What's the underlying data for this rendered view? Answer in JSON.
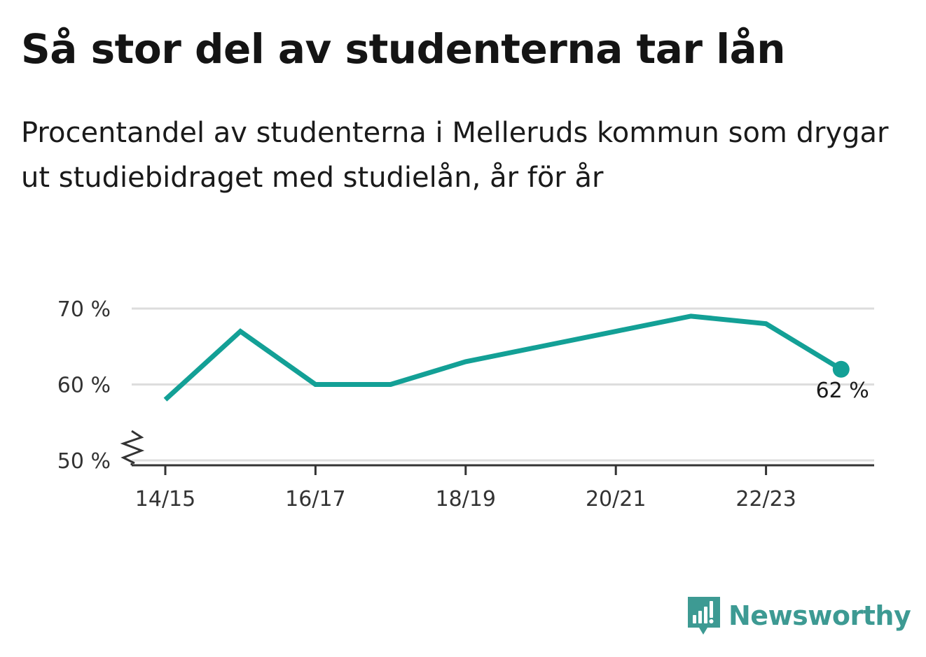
{
  "title": "Så stor del av studenterna tar lån",
  "subtitle": "Procentandel av studenterna i Melleruds kommun som drygar ut studiebidraget med studielån, år för år",
  "brand": {
    "name": "Newsworthy",
    "icon": "newsworthy-logo-icon",
    "color": "#3d9a93"
  },
  "colors": {
    "line": "#13a096",
    "grid": "#dddddd",
    "axis": "#333333"
  },
  "chart_data": {
    "type": "line",
    "title": "Så stor del av studenterna tar lån",
    "xlabel": "",
    "ylabel": "",
    "ylim": [
      50,
      70
    ],
    "yticks": [
      50,
      60,
      70
    ],
    "ytick_labels": [
      "50 %",
      "60 %",
      "70 %"
    ],
    "axis_break": true,
    "grid": true,
    "x": [
      "14/15",
      "15/16",
      "16/17",
      "17/18",
      "18/19",
      "19/20",
      "20/21",
      "21/22",
      "22/23",
      "23/24"
    ],
    "xtick_labels": [
      "14/15",
      "16/17",
      "18/19",
      "20/21",
      "22/23"
    ],
    "series": [
      {
        "name": "",
        "values": [
          58,
          67,
          60,
          60,
          63,
          65,
          67,
          69,
          68,
          62
        ]
      }
    ],
    "annotations": [
      {
        "x": "23/24",
        "y": 62,
        "text": "62 %"
      }
    ]
  }
}
